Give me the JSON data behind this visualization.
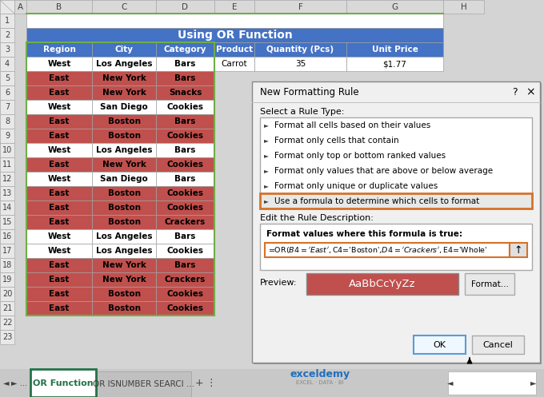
{
  "title": "Using OR Function",
  "title_bg": "#4472C4",
  "title_fg": "#FFFFFF",
  "header_bg": "#4472C4",
  "header_fg": "#FFFFFF",
  "headers": [
    "Region",
    "City",
    "Category",
    "Product",
    "Quantity (Pcs)",
    "Unit Price"
  ],
  "rows": [
    [
      "West",
      "Los Angeles",
      "Bars"
    ],
    [
      "East",
      "New York",
      "Bars"
    ],
    [
      "East",
      "New York",
      "Snacks"
    ],
    [
      "West",
      "San Diego",
      "Cookies"
    ],
    [
      "East",
      "Boston",
      "Bars"
    ],
    [
      "East",
      "Boston",
      "Cookies"
    ],
    [
      "West",
      "Los Angeles",
      "Bars"
    ],
    [
      "East",
      "New York",
      "Cookies"
    ],
    [
      "West",
      "San Diego",
      "Bars"
    ],
    [
      "East",
      "Boston",
      "Cookies"
    ],
    [
      "East",
      "Boston",
      "Cookies"
    ],
    [
      "East",
      "Boston",
      "Crackers"
    ],
    [
      "West",
      "Los Angeles",
      "Bars"
    ],
    [
      "West",
      "Los Angeles",
      "Cookies"
    ],
    [
      "East",
      "New York",
      "Bars"
    ],
    [
      "East",
      "New York",
      "Crackers"
    ],
    [
      "East",
      "Boston",
      "Cookies"
    ],
    [
      "East",
      "Boston",
      "Cookies"
    ]
  ],
  "cell_bg_default": "#FFFFFF",
  "cell_bg_highlighted": "#C0504D",
  "grid_color": "#A0A0A0",
  "green_border": "#70AD47",
  "dialog_title": "New Formatting Rule",
  "dialog_bg": "#F0F0F0",
  "rule_types": [
    "Format all cells based on their values",
    "Format only cells that contain",
    "Format only top or bottom ranked values",
    "Format only values that are above or below average",
    "Format only unique or duplicate values",
    "Use a formula to determine which cells to format"
  ],
  "formula_text": "=OR($B4='East',$C4='Boston',$D4='Crackers',$E4='Whole'",
  "preview_bg": "#C0504D",
  "preview_text": "AaBbCcYyZz",
  "preview_text_color": "#FFFFFF",
  "sheet_tab_active": "OR Function",
  "sheet_tab_inactive": "OR ISNUMBER SEARCI ...",
  "tab_active_border": "#217346",
  "excel_bg": "#D4D4D4",
  "col_letters": [
    "A",
    "B",
    "C",
    "D",
    "E",
    "F",
    "G",
    "H"
  ],
  "exceldemy_color": "#1F6FBF",
  "orange_border": "#D67228"
}
